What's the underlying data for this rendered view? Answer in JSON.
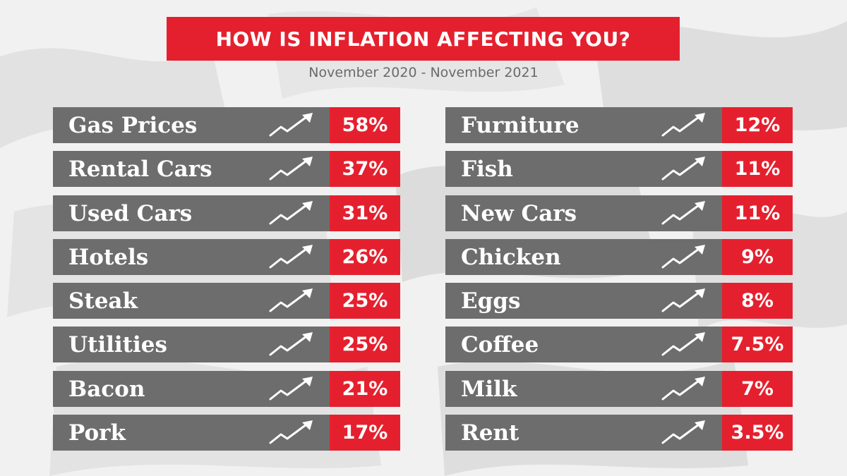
{
  "title": "HOW IS INFLATION AFFECTING YOU?",
  "subtitle": "November 2020 - November 2021",
  "chart_data": {
    "type": "table",
    "title": "HOW IS INFLATION AFFECTING YOU?",
    "subtitle": "November 2020 - November 2021",
    "icon": "trend-up-arrow-icon",
    "colors": {
      "accent": "#e5202e",
      "row": "#6d6d6d",
      "background": "#f1f1f1"
    },
    "columns": [
      [
        {
          "label": "Gas Prices",
          "value": 58,
          "display": "58%"
        },
        {
          "label": "Rental Cars",
          "value": 37,
          "display": "37%"
        },
        {
          "label": "Used Cars",
          "value": 31,
          "display": "31%"
        },
        {
          "label": "Hotels",
          "value": 26,
          "display": "26%"
        },
        {
          "label": "Steak",
          "value": 25,
          "display": "25%"
        },
        {
          "label": "Utilities",
          "value": 25,
          "display": "25%"
        },
        {
          "label": "Bacon",
          "value": 21,
          "display": "21%"
        },
        {
          "label": "Pork",
          "value": 17,
          "display": "17%"
        }
      ],
      [
        {
          "label": "Furniture",
          "value": 12,
          "display": "12%"
        },
        {
          "label": "Fish",
          "value": 11,
          "display": "11%"
        },
        {
          "label": "New Cars",
          "value": 11,
          "display": "11%"
        },
        {
          "label": "Chicken",
          "value": 9,
          "display": "9%"
        },
        {
          "label": "Eggs",
          "value": 8,
          "display": "8%"
        },
        {
          "label": "Coffee",
          "value": 7.5,
          "display": "7.5%"
        },
        {
          "label": "Milk",
          "value": 7,
          "display": "7%"
        },
        {
          "label": "Rent",
          "value": 3.5,
          "display": "3.5%"
        }
      ]
    ]
  }
}
